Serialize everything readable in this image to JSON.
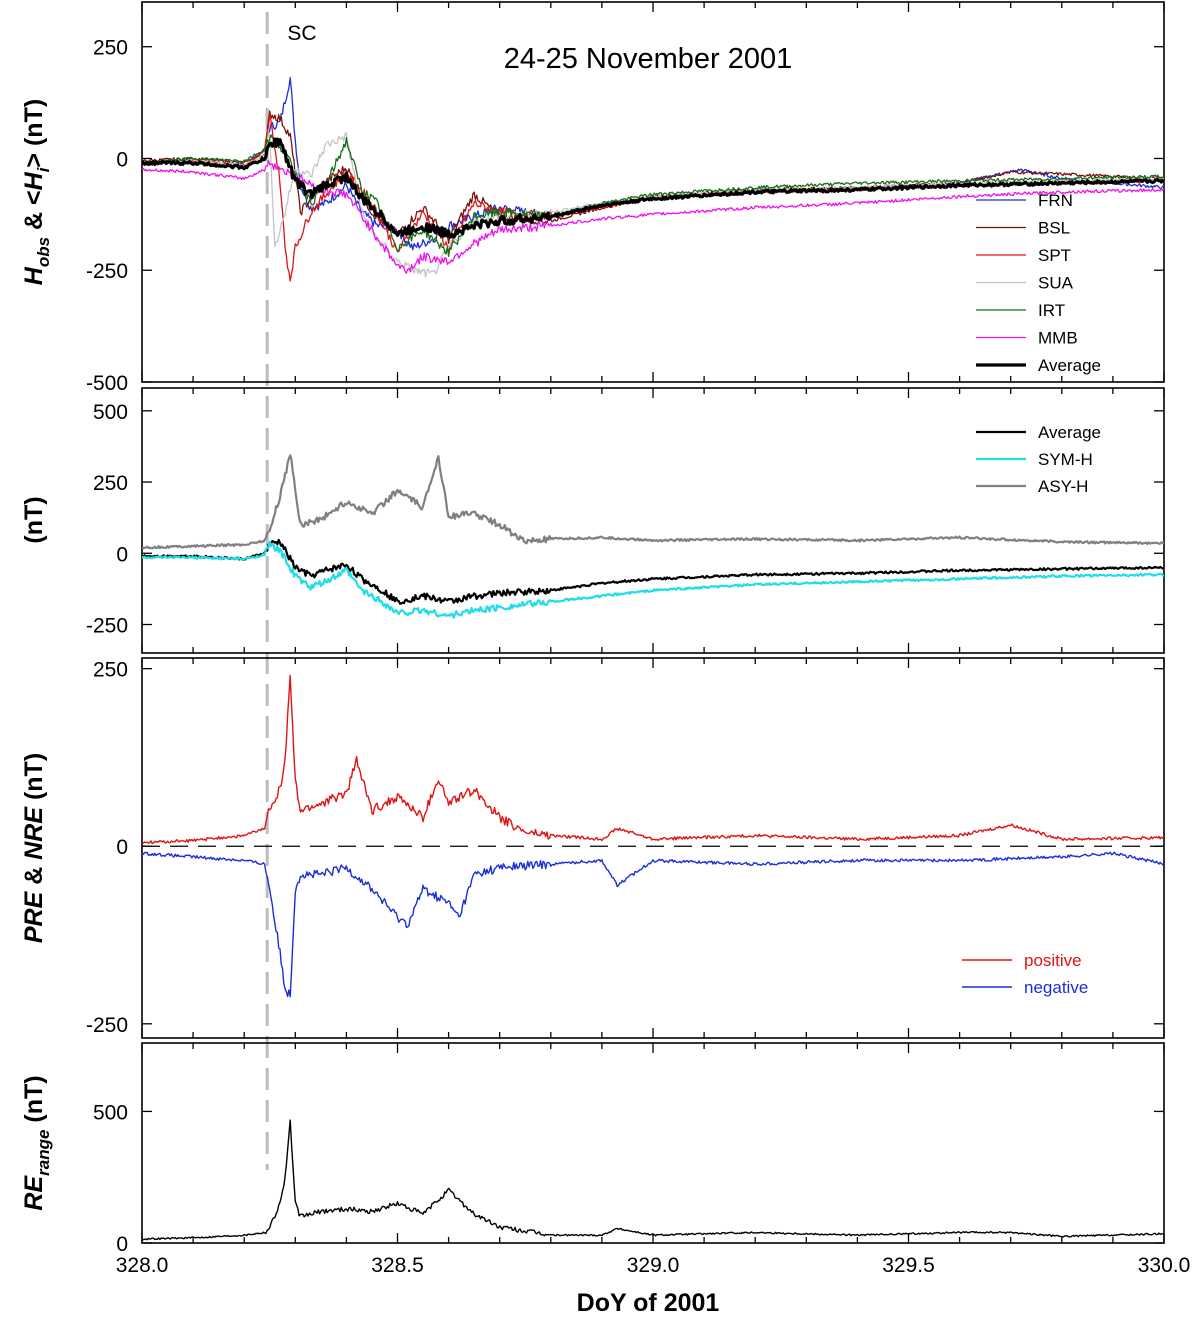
{
  "chart_data": [
    {
      "type": "line",
      "title": "24-25 November 2001",
      "ylabel": "H_obs & <H_i> (nT)",
      "ylim": [
        -500,
        350
      ],
      "yticks": [
        -500,
        -250,
        0,
        250
      ],
      "xlim": [
        328.0,
        330.0
      ],
      "annotations": [
        {
          "text": "SC",
          "x": 328.245
        }
      ],
      "legend_position": "bottom-right",
      "series": [
        {
          "name": "FRN",
          "color": "#1c2fd6",
          "width": 1.3,
          "x": [
            328.0,
            328.1,
            328.2,
            328.24,
            328.25,
            328.27,
            328.29,
            328.3,
            328.31,
            328.33,
            328.36,
            328.4,
            328.43,
            328.46,
            328.5,
            328.53,
            328.57,
            328.6,
            328.65,
            328.7,
            328.8,
            328.9,
            329.0,
            329.2,
            329.4,
            329.6,
            329.72,
            329.8,
            330.0
          ],
          "y": [
            -10,
            -5,
            -15,
            20,
            70,
            80,
            180,
            40,
            -60,
            -110,
            -100,
            -60,
            -120,
            -150,
            -160,
            -200,
            -180,
            -150,
            -130,
            -110,
            -130,
            -100,
            -90,
            -75,
            -70,
            -55,
            -25,
            -45,
            -65
          ]
        },
        {
          "name": "BSL",
          "color": "#7a1010",
          "width": 1.3,
          "x": [
            328.0,
            328.1,
            328.2,
            328.24,
            328.25,
            328.27,
            328.29,
            328.31,
            328.35,
            328.4,
            328.45,
            328.5,
            328.55,
            328.6,
            328.65,
            328.7,
            328.8,
            328.9,
            329.0,
            329.2,
            329.4,
            329.6,
            329.7,
            330.0
          ],
          "y": [
            -5,
            0,
            -10,
            10,
            100,
            90,
            50,
            -120,
            -60,
            -20,
            -120,
            -170,
            -110,
            -180,
            -80,
            -130,
            -140,
            -110,
            -85,
            -70,
            -65,
            -55,
            -30,
            -45
          ]
        },
        {
          "name": "SPT",
          "color": "#e01414",
          "width": 1.3,
          "x": [
            328.0,
            328.1,
            328.2,
            328.24,
            328.25,
            328.27,
            328.28,
            328.29,
            328.3,
            328.33,
            328.36,
            328.4,
            328.45,
            328.5,
            328.55,
            328.6,
            328.65,
            328.7,
            328.8,
            328.9,
            329.0,
            329.2,
            329.4,
            329.6,
            329.8,
            330.0
          ],
          "y": [
            -10,
            -5,
            -15,
            15,
            95,
            -50,
            -200,
            -270,
            -200,
            -120,
            -80,
            -30,
            -100,
            -210,
            -120,
            -200,
            -100,
            -120,
            -130,
            -110,
            -90,
            -75,
            -70,
            -60,
            -55,
            -50
          ]
        },
        {
          "name": "SUA",
          "color": "#c4c4c4",
          "width": 1.3,
          "x": [
            328.0,
            328.1,
            328.2,
            328.24,
            328.25,
            328.26,
            328.28,
            328.3,
            328.33,
            328.36,
            328.4,
            328.43,
            328.46,
            328.5,
            328.53,
            328.57,
            328.6,
            328.65,
            328.7,
            328.8,
            328.9,
            329.0,
            329.2,
            329.4,
            329.6,
            329.8,
            330.0
          ],
          "y": [
            -10,
            -5,
            -15,
            10,
            60,
            -200,
            -120,
            -20,
            -40,
            30,
            50,
            -120,
            -180,
            -230,
            -250,
            -260,
            -200,
            -140,
            -130,
            -120,
            -100,
            -85,
            -70,
            -65,
            -55,
            -50,
            -45
          ]
        },
        {
          "name": "IRT",
          "color": "#157015",
          "width": 1.3,
          "x": [
            328.0,
            328.1,
            328.2,
            328.24,
            328.25,
            328.27,
            328.3,
            328.33,
            328.36,
            328.4,
            328.43,
            328.46,
            328.5,
            328.55,
            328.6,
            328.65,
            328.7,
            328.8,
            328.9,
            329.0,
            329.2,
            329.4,
            329.6,
            329.8,
            330.0
          ],
          "y": [
            -10,
            0,
            -5,
            20,
            50,
            30,
            -30,
            -100,
            -60,
            40,
            -70,
            -100,
            -200,
            -160,
            -210,
            -130,
            -120,
            -130,
            -100,
            -80,
            -65,
            -55,
            -50,
            -45,
            -40
          ]
        },
        {
          "name": "MMB",
          "color": "#ee11ee",
          "width": 1.3,
          "x": [
            328.0,
            328.1,
            328.2,
            328.24,
            328.25,
            328.3,
            328.35,
            328.4,
            328.45,
            328.5,
            328.52,
            328.55,
            328.6,
            328.65,
            328.7,
            328.8,
            328.9,
            329.0,
            329.2,
            329.4,
            329.6,
            329.8,
            330.0
          ],
          "y": [
            -25,
            -30,
            -45,
            -25,
            -10,
            -40,
            -70,
            -80,
            -160,
            -240,
            -250,
            -220,
            -230,
            -190,
            -160,
            -150,
            -135,
            -125,
            -110,
            -100,
            -85,
            -75,
            -70
          ]
        },
        {
          "name": "Average",
          "color": "#000000",
          "width": 3.2,
          "x": [
            328.0,
            328.1,
            328.2,
            328.24,
            328.25,
            328.27,
            328.3,
            328.33,
            328.36,
            328.4,
            328.43,
            328.47,
            328.5,
            328.55,
            328.6,
            328.65,
            328.7,
            328.8,
            328.9,
            329.0,
            329.2,
            329.4,
            329.6,
            329.8,
            330.0
          ],
          "y": [
            -10,
            -10,
            -20,
            0,
            30,
            40,
            -50,
            -80,
            -60,
            -40,
            -90,
            -130,
            -170,
            -150,
            -170,
            -150,
            -140,
            -130,
            -105,
            -90,
            -75,
            -70,
            -60,
            -55,
            -50
          ]
        }
      ]
    },
    {
      "type": "line",
      "ylabel": "(nT)",
      "ylim": [
        -350,
        580
      ],
      "yticks": [
        -250,
        0,
        250,
        500
      ],
      "xlim": [
        328.0,
        330.0
      ],
      "legend_position": "top-right",
      "series": [
        {
          "name": "Average",
          "color": "#000000",
          "width": 2.2,
          "x": [
            328.0,
            328.1,
            328.2,
            328.24,
            328.25,
            328.27,
            328.3,
            328.33,
            328.36,
            328.4,
            328.43,
            328.47,
            328.5,
            328.55,
            328.6,
            328.65,
            328.7,
            328.8,
            328.9,
            329.0,
            329.2,
            329.4,
            329.6,
            329.8,
            330.0
          ],
          "y": [
            -10,
            -10,
            -20,
            0,
            30,
            40,
            -50,
            -80,
            -60,
            -40,
            -90,
            -130,
            -170,
            -150,
            -170,
            -150,
            -140,
            -130,
            -105,
            -90,
            -75,
            -70,
            -60,
            -55,
            -50
          ]
        },
        {
          "name": "SYM-H",
          "color": "#22dde8",
          "width": 2.2,
          "x": [
            328.0,
            328.1,
            328.2,
            328.24,
            328.25,
            328.27,
            328.3,
            328.33,
            328.36,
            328.4,
            328.43,
            328.47,
            328.5,
            328.55,
            328.6,
            328.65,
            328.7,
            328.8,
            328.9,
            329.0,
            329.2,
            329.4,
            329.6,
            329.8,
            330.0
          ],
          "y": [
            -15,
            -15,
            -20,
            -5,
            30,
            10,
            -80,
            -120,
            -100,
            -60,
            -130,
            -170,
            -210,
            -200,
            -220,
            -200,
            -190,
            -170,
            -150,
            -130,
            -110,
            -100,
            -90,
            -80,
            -75
          ]
        },
        {
          "name": "ASY-H",
          "color": "#808080",
          "width": 2.2,
          "x": [
            328.0,
            328.1,
            328.2,
            328.24,
            328.25,
            328.27,
            328.29,
            328.31,
            328.35,
            328.4,
            328.45,
            328.5,
            328.55,
            328.58,
            328.6,
            328.65,
            328.7,
            328.75,
            328.8,
            328.9,
            329.0,
            329.2,
            329.4,
            329.6,
            329.8,
            330.0
          ],
          "y": [
            20,
            25,
            30,
            45,
            80,
            200,
            350,
            100,
            120,
            180,
            140,
            220,
            160,
            340,
            130,
            140,
            100,
            40,
            50,
            55,
            45,
            50,
            45,
            55,
            40,
            35
          ]
        }
      ]
    },
    {
      "type": "line",
      "ylabel": "PRE & NRE (nT)",
      "ylim": [
        -270,
        265
      ],
      "yticks": [
        -250,
        0,
        250
      ],
      "xlim": [
        328.0,
        330.0
      ],
      "reference_line": {
        "y": 0,
        "style": "dashed"
      },
      "legend_position": "bottom-right",
      "series": [
        {
          "name": "positive",
          "color": "#e01414",
          "width": 1.4,
          "x": [
            328.0,
            328.1,
            328.2,
            328.24,
            328.25,
            328.27,
            328.28,
            328.29,
            328.3,
            328.31,
            328.35,
            328.4,
            328.42,
            328.45,
            328.5,
            328.55,
            328.58,
            328.6,
            328.65,
            328.7,
            328.75,
            328.8,
            328.9,
            328.93,
            329.0,
            329.2,
            329.4,
            329.6,
            329.7,
            329.8,
            330.0
          ],
          "y": [
            5,
            8,
            15,
            25,
            55,
            80,
            120,
            240,
            90,
            50,
            60,
            75,
            120,
            50,
            70,
            40,
            95,
            60,
            80,
            40,
            20,
            15,
            10,
            25,
            10,
            15,
            10,
            15,
            30,
            10,
            12
          ]
        },
        {
          "name": "negative",
          "color": "#1c2fd6",
          "width": 1.4,
          "x": [
            328.0,
            328.1,
            328.2,
            328.24,
            328.25,
            328.27,
            328.28,
            328.29,
            328.3,
            328.31,
            328.35,
            328.4,
            328.45,
            328.5,
            328.52,
            328.55,
            328.6,
            328.62,
            328.65,
            328.7,
            328.8,
            328.9,
            328.93,
            329.0,
            329.2,
            329.4,
            329.6,
            329.8,
            329.9,
            330.0
          ],
          "y": [
            -10,
            -15,
            -20,
            -25,
            -60,
            -150,
            -200,
            -210,
            -60,
            -40,
            -40,
            -30,
            -60,
            -100,
            -110,
            -60,
            -80,
            -100,
            -40,
            -30,
            -25,
            -20,
            -55,
            -20,
            -25,
            -20,
            -20,
            -15,
            -10,
            -25
          ]
        }
      ]
    },
    {
      "type": "line",
      "ylabel": "RE_range (nT)",
      "ylim": [
        0,
        760
      ],
      "yticks": [
        0,
        500
      ],
      "xlim": [
        328.0,
        330.0
      ],
      "xticks": [
        328.0,
        328.5,
        329.0,
        329.5,
        330.0
      ],
      "xticklabels": [
        "328.0",
        "328.5",
        "329.0",
        "329.5",
        "330.0"
      ],
      "xlabel": "DoY of 2001",
      "series": [
        {
          "name": "",
          "color": "#000000",
          "width": 1.4,
          "x": [
            328.0,
            328.1,
            328.2,
            328.24,
            328.25,
            328.27,
            328.28,
            328.29,
            328.3,
            328.31,
            328.35,
            328.4,
            328.45,
            328.5,
            328.55,
            328.6,
            328.65,
            328.7,
            328.8,
            328.9,
            328.93,
            329.0,
            329.2,
            329.4,
            329.6,
            329.7,
            329.8,
            330.0
          ],
          "y": [
            15,
            20,
            30,
            40,
            60,
            150,
            250,
            460,
            150,
            100,
            120,
            130,
            120,
            150,
            110,
            200,
            110,
            60,
            30,
            30,
            55,
            30,
            40,
            30,
            40,
            40,
            25,
            35
          ]
        }
      ]
    }
  ]
}
